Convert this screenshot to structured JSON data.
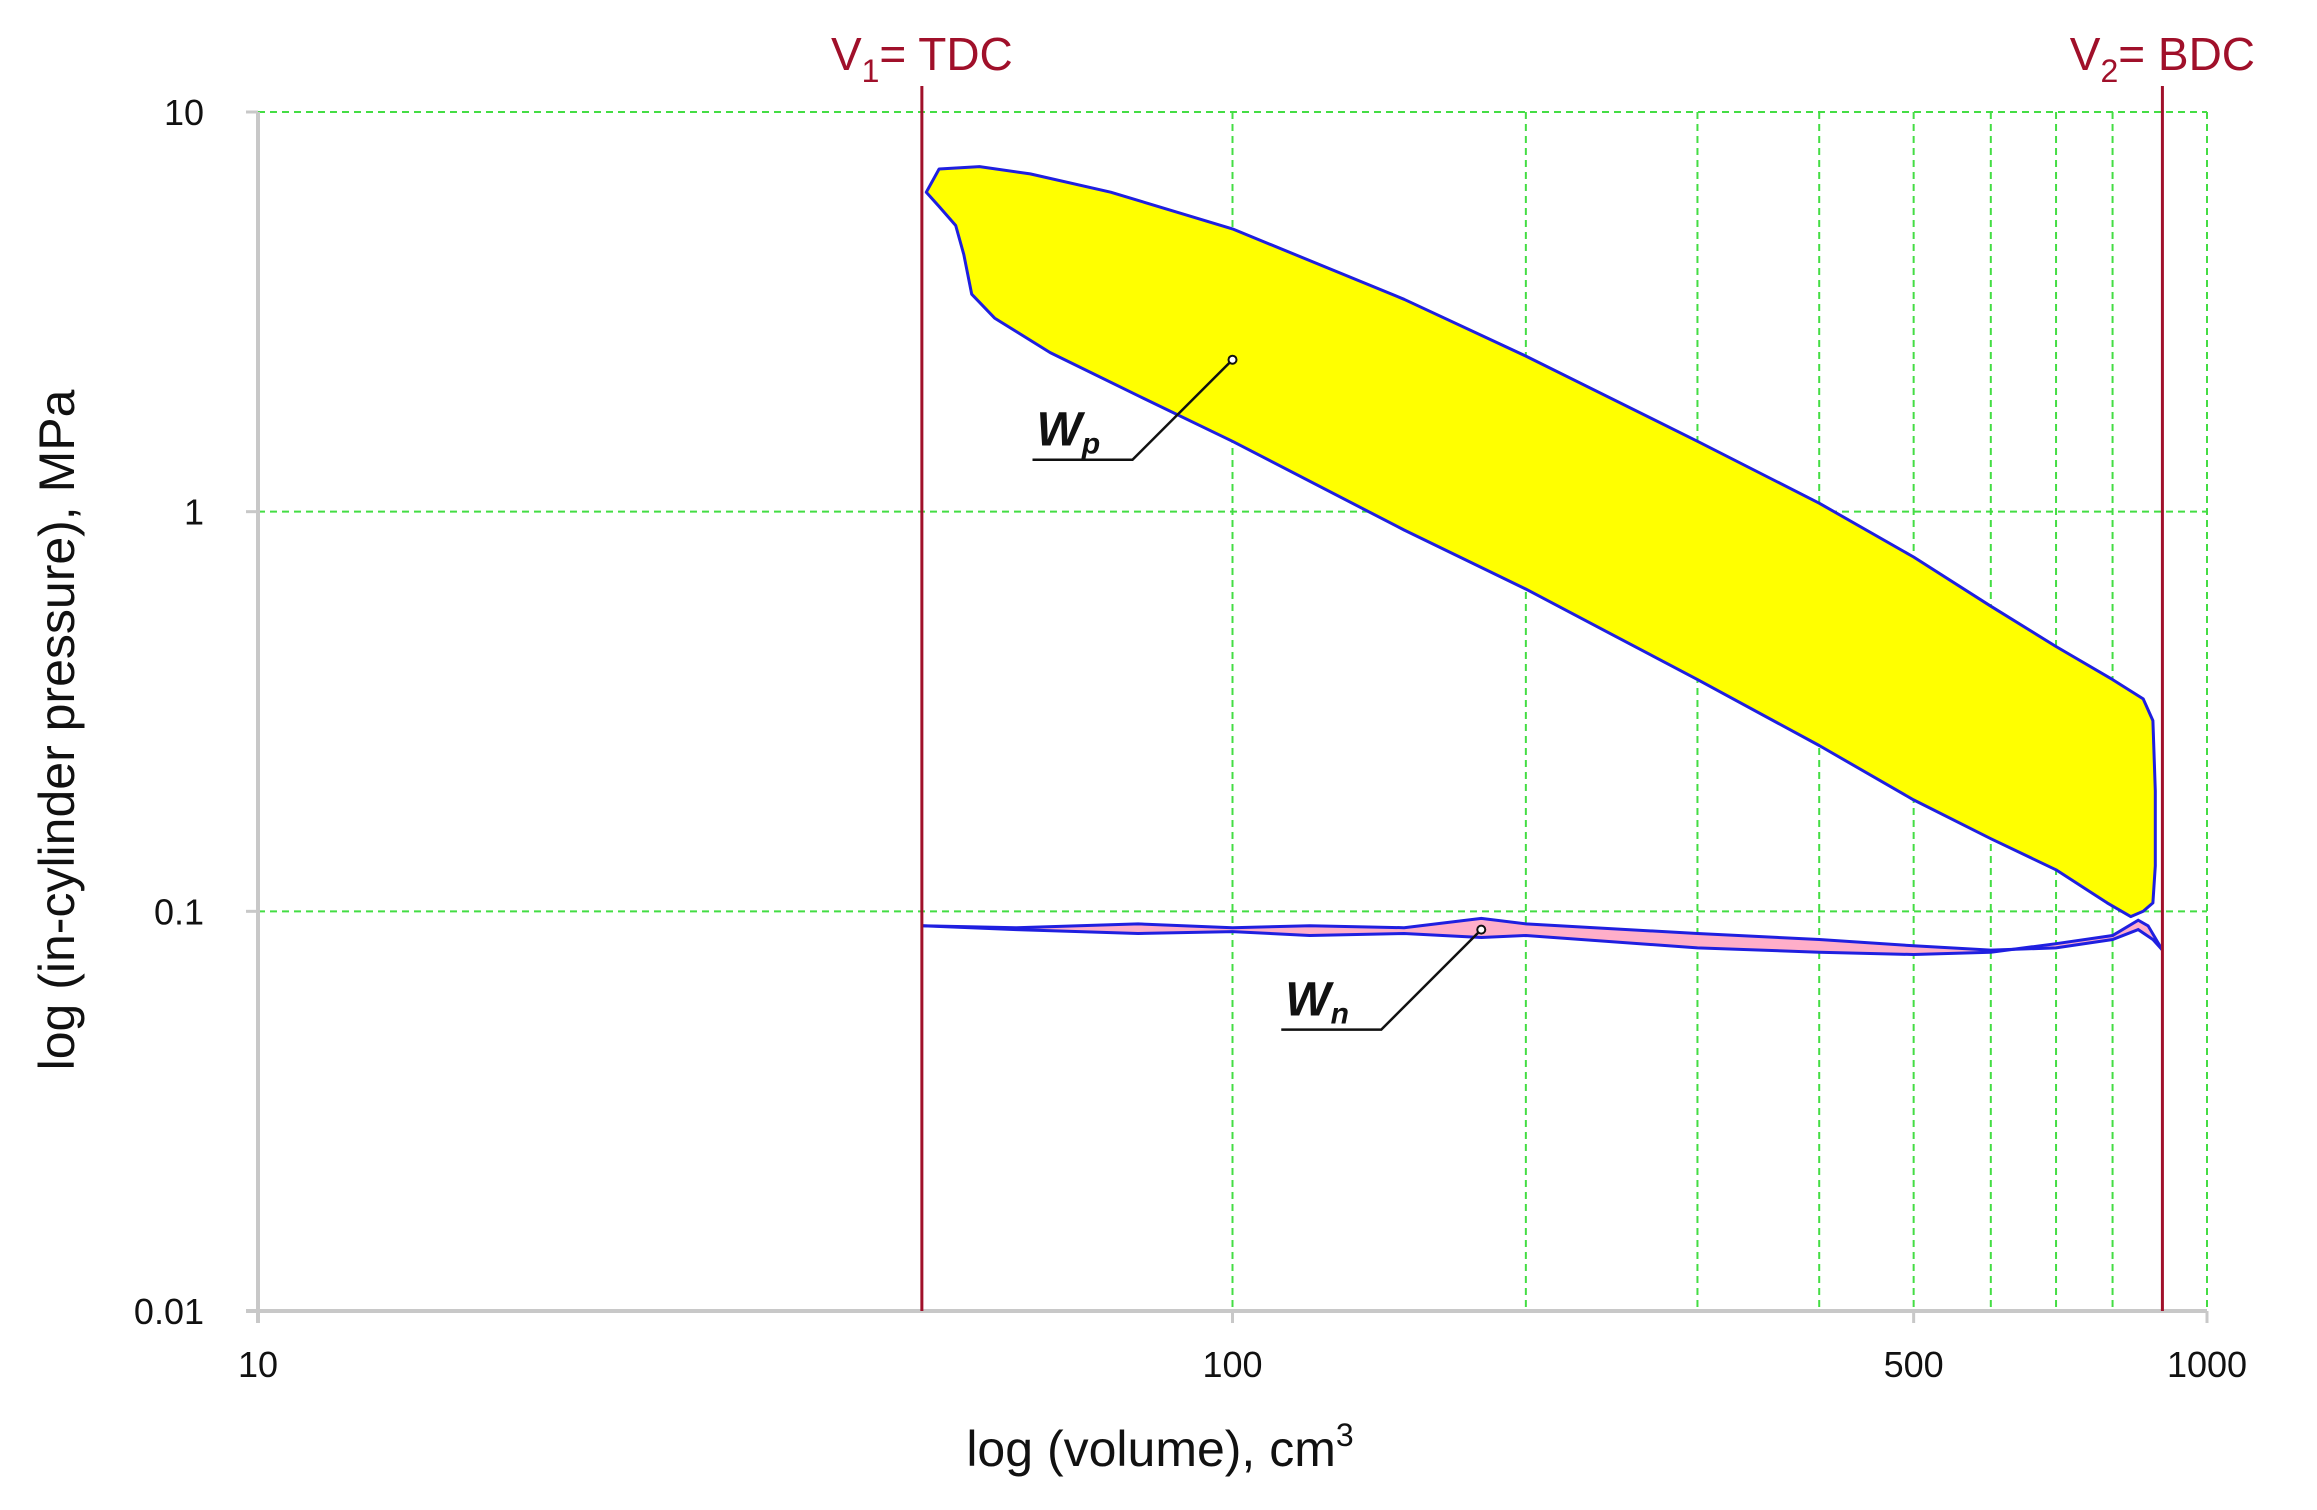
{
  "chart_data": {
    "type": "line",
    "title": "",
    "xlabel": "log (volume), cm",
    "xlabel_superscript": "3",
    "ylabel": "log (in-cylinder pressure), MPa",
    "x_scale": "log",
    "y_scale": "log",
    "xlim": [
      10,
      1000
    ],
    "ylim": [
      0.01,
      10
    ],
    "x_ticks": [
      10,
      100,
      500,
      1000
    ],
    "x_tick_labels": [
      "10",
      "100",
      "500",
      "1000"
    ],
    "x_gridlines": [
      100,
      200,
      300,
      400,
      500,
      600,
      700,
      800,
      900,
      1000
    ],
    "y_ticks": [
      0.01,
      0.1,
      1,
      10
    ],
    "y_tick_labels": [
      "0.01",
      "0.1",
      "1",
      "10"
    ],
    "grid": true,
    "grid_style": "dashed",
    "colors": {
      "grid": "#44dd44",
      "loop_line": "#1f1fe0",
      "positive_fill": "#ffff00",
      "negative_fill": "#ffaec9",
      "marker_line": "#a0102a",
      "axis": "#c8c8c8",
      "text": "#111111"
    },
    "vertical_markers": [
      {
        "x": 48,
        "label_main": "V",
        "label_sub": "1",
        "label_rest": "= TDC"
      },
      {
        "x": 900,
        "label_main": "V",
        "label_sub": "2",
        "label_rest": "= BDC"
      }
    ],
    "series": [
      {
        "role": "high-pressure loop (positive work)",
        "fill": "positive_fill",
        "points": [
          [
            48.5,
            6.3
          ],
          [
            50,
            7.2
          ],
          [
            55,
            7.3
          ],
          [
            62,
            7.0
          ],
          [
            75,
            6.3
          ],
          [
            100,
            5.1
          ],
          [
            150,
            3.4
          ],
          [
            200,
            2.45
          ],
          [
            300,
            1.5
          ],
          [
            400,
            1.05
          ],
          [
            500,
            0.77
          ],
          [
            600,
            0.58
          ],
          [
            700,
            0.46
          ],
          [
            800,
            0.38
          ],
          [
            860,
            0.34
          ],
          [
            880,
            0.3
          ],
          [
            885,
            0.2
          ],
          [
            885,
            0.13
          ],
          [
            880,
            0.105
          ],
          [
            860,
            0.1
          ],
          [
            835,
            0.097
          ],
          [
            790,
            0.105
          ],
          [
            700,
            0.127
          ],
          [
            600,
            0.152
          ],
          [
            500,
            0.19
          ],
          [
            400,
            0.26
          ],
          [
            300,
            0.38
          ],
          [
            200,
            0.64
          ],
          [
            150,
            0.9
          ],
          [
            100,
            1.5
          ],
          [
            80,
            1.95
          ],
          [
            65,
            2.5
          ],
          [
            57,
            3.05
          ],
          [
            54,
            3.5
          ],
          [
            53,
            4.4
          ],
          [
            52,
            5.2
          ],
          [
            50,
            5.8
          ],
          [
            48.5,
            6.3
          ]
        ]
      },
      {
        "role": "gas-exchange loop upper branch",
        "points": [
          [
            48,
            0.092
          ],
          [
            60,
            0.091
          ],
          [
            80,
            0.093
          ],
          [
            100,
            0.091
          ],
          [
            120,
            0.092
          ],
          [
            150,
            0.091
          ],
          [
            180,
            0.096
          ],
          [
            200,
            0.093
          ],
          [
            300,
            0.088
          ],
          [
            400,
            0.085
          ],
          [
            500,
            0.082
          ],
          [
            600,
            0.08
          ],
          [
            700,
            0.081
          ],
          [
            800,
            0.085
          ],
          [
            850,
            0.09
          ],
          [
            880,
            0.085
          ],
          [
            900,
            0.08
          ]
        ]
      },
      {
        "role": "gas-exchange loop lower branch",
        "points": [
          [
            48,
            0.092
          ],
          [
            60,
            0.09
          ],
          [
            80,
            0.088
          ],
          [
            100,
            0.089
          ],
          [
            120,
            0.087
          ],
          [
            150,
            0.088
          ],
          [
            180,
            0.086
          ],
          [
            200,
            0.087
          ],
          [
            300,
            0.081
          ],
          [
            400,
            0.079
          ],
          [
            500,
            0.078
          ],
          [
            600,
            0.079
          ],
          [
            700,
            0.083
          ],
          [
            800,
            0.087
          ],
          [
            850,
            0.095
          ],
          [
            870,
            0.092
          ],
          [
            900,
            0.08
          ]
        ]
      }
    ],
    "annotations": [
      {
        "label_main": "W",
        "label_sub": "p",
        "point": [
          100,
          2.4
        ],
        "box": "left"
      },
      {
        "label_main": "W",
        "label_sub": "n",
        "point": [
          180,
          0.09
        ],
        "box": "left"
      }
    ]
  }
}
